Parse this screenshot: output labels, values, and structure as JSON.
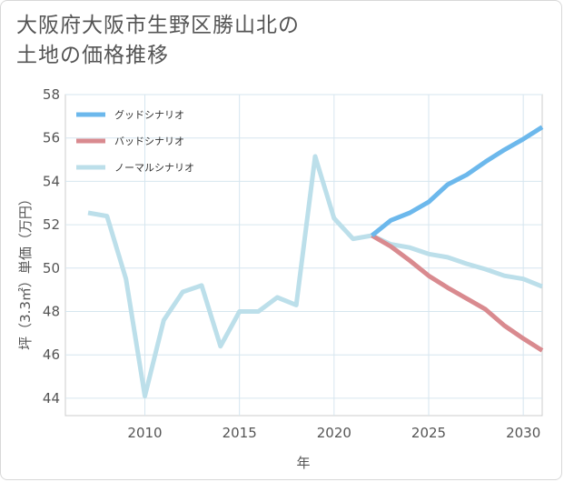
{
  "chart_data": {
    "type": "line",
    "title_lines": [
      "大阪府大阪市生野区勝山北の",
      "土地の価格推移"
    ],
    "xlabel": "年",
    "ylabel": "坪（3.3㎡）単価（万円）",
    "xlim": [
      2005.8,
      2031
    ],
    "ylim": [
      43.2,
      58
    ],
    "xticks": [
      2010,
      2015,
      2020,
      2025,
      2030
    ],
    "yticks": [
      44,
      46,
      48,
      50,
      52,
      54,
      56,
      58
    ],
    "series": [
      {
        "name": "グッドシナリオ",
        "color": "#6cb8ec",
        "x": [
          2022,
          2023,
          2024,
          2025,
          2026,
          2027,
          2028,
          2029,
          2030,
          2031
        ],
        "values": [
          51.5,
          52.2,
          52.55,
          53.05,
          53.85,
          54.3,
          54.9,
          55.45,
          55.95,
          56.5
        ]
      },
      {
        "name": "バッドシナリオ",
        "color": "#d98a8f",
        "x": [
          2022,
          2023,
          2024,
          2025,
          2026,
          2027,
          2028,
          2029,
          2030,
          2031
        ],
        "values": [
          51.5,
          51.0,
          50.35,
          49.65,
          49.1,
          48.6,
          48.1,
          47.35,
          46.75,
          46.2
        ]
      },
      {
        "name": "ノーマルシナリオ",
        "color": "#bcdfea",
        "x": [
          2007,
          2008,
          2009,
          2010,
          2011,
          2012,
          2013,
          2014,
          2015,
          2016,
          2017,
          2018,
          2019,
          2020,
          2021,
          2022,
          2023,
          2024,
          2025,
          2026,
          2027,
          2028,
          2029,
          2030,
          2031
        ],
        "values": [
          52.55,
          52.4,
          49.5,
          44.1,
          47.6,
          48.9,
          49.2,
          46.4,
          48.0,
          48.0,
          48.65,
          48.3,
          55.15,
          52.3,
          51.35,
          51.5,
          51.1,
          50.95,
          50.65,
          50.5,
          50.2,
          49.95,
          49.65,
          49.5,
          49.15
        ]
      }
    ],
    "grid": true,
    "legend_position": "top-left"
  }
}
